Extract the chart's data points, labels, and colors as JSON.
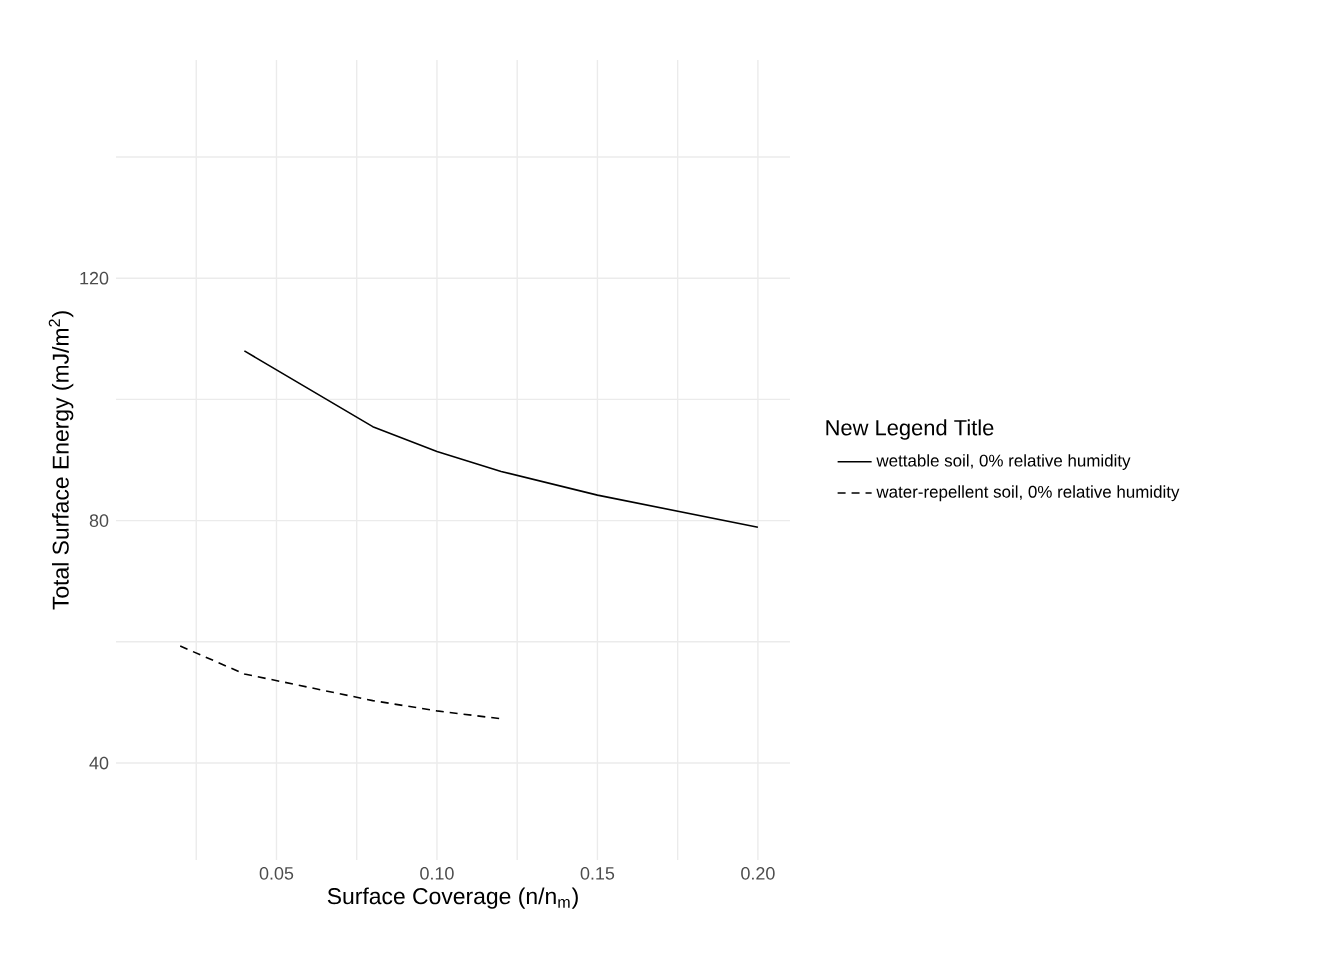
{
  "chart_data": {
    "type": "line",
    "xlabel": "Surface Coverage (n/n$_{m}$)",
    "ylabel": "Total Surface Energy (mJ/m$^{2}$)",
    "legend_title": "New Legend Title",
    "legend": "right",
    "grid": true,
    "xlim": [
      0,
      0.21
    ],
    "ylim": [
      24,
      156
    ],
    "xticks": [
      {
        "value": 0.025,
        "label": null
      },
      0.05,
      {
        "value": 0.075,
        "label": null
      },
      "0.10",
      {
        "value": 0.125,
        "label": null
      },
      0.15,
      {
        "value": 0.175,
        "label": null
      },
      "0.20"
    ],
    "yticks": [
      40,
      {
        "value": 60,
        "label": null
      },
      80,
      {
        "value": 100,
        "label": null
      },
      120,
      {
        "value": 140,
        "label": null
      }
    ],
    "series": [
      {
        "name": "wettable soil, 0% relative humidity",
        "color": "#000000",
        "line_style": "solid",
        "x": [
          0.04,
          0.08,
          0.1,
          0.12,
          0.15,
          0.2
        ],
        "values": [
          108,
          95.5,
          91.4,
          88.1,
          84.2,
          78.9
        ]
      },
      {
        "name": "water-repellent soil, 0% relative humidity",
        "color": "#000000",
        "line_style": "dashed",
        "x": [
          0.02,
          0.04,
          0.06,
          0.08,
          0.1,
          0.12
        ],
        "values": [
          59.3,
          54.7,
          52.5,
          50.3,
          48.6,
          47.3
        ]
      }
    ]
  }
}
